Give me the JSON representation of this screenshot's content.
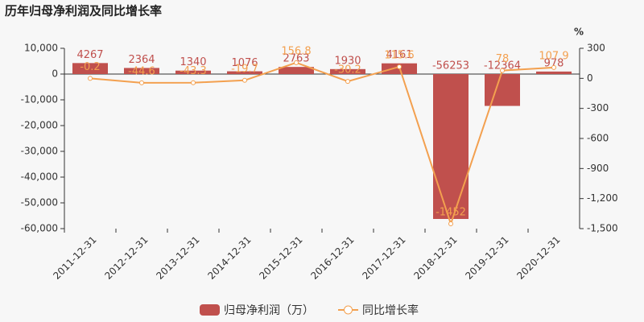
{
  "chart_data": {
    "type": "bar-line",
    "title": "历年归母净利润及同比增长率",
    "y2_label": "%",
    "categories": [
      "2011-12-31",
      "2012-12-31",
      "2013-12-31",
      "2014-12-31",
      "2015-12-31",
      "2016-12-31",
      "2017-12-31",
      "2018-12-31",
      "2019-12-31",
      "2020-12-31"
    ],
    "series": [
      {
        "name": "归母净利润（万）",
        "color": "#c0504d",
        "type": "bar",
        "values": [
          4267,
          2364,
          1340,
          1076,
          2763,
          1930,
          4161,
          -56253,
          -12364,
          978
        ]
      },
      {
        "name": "同比增长率",
        "color": "#f3a04f",
        "type": "line",
        "axis": "y2",
        "values": [
          -0.2,
          -44.6,
          -43.3,
          -19.7,
          156.8,
          -30.2,
          115.6,
          -1452,
          78,
          107.9
        ]
      }
    ],
    "ylim": [
      -60000,
      10000
    ],
    "yticks": [
      {
        "value": -60000,
        "label": "-60,000"
      },
      {
        "value": -50000,
        "label": "-50,000"
      },
      {
        "value": -40000,
        "label": "-40,000"
      },
      {
        "value": -30000,
        "label": "-30,000"
      },
      {
        "value": -20000,
        "label": "-20,000"
      },
      {
        "value": -10000,
        "label": "-10,000"
      },
      0,
      {
        "value": 10000,
        "label": "10,000"
      }
    ],
    "y2lim": [
      -1500,
      300
    ],
    "y2ticks": [
      {
        "value": -1500,
        "label": "-1,500"
      },
      {
        "value": -1200,
        "label": "-1,200"
      },
      -900,
      -600,
      -300,
      0,
      300
    ],
    "grid": false
  }
}
